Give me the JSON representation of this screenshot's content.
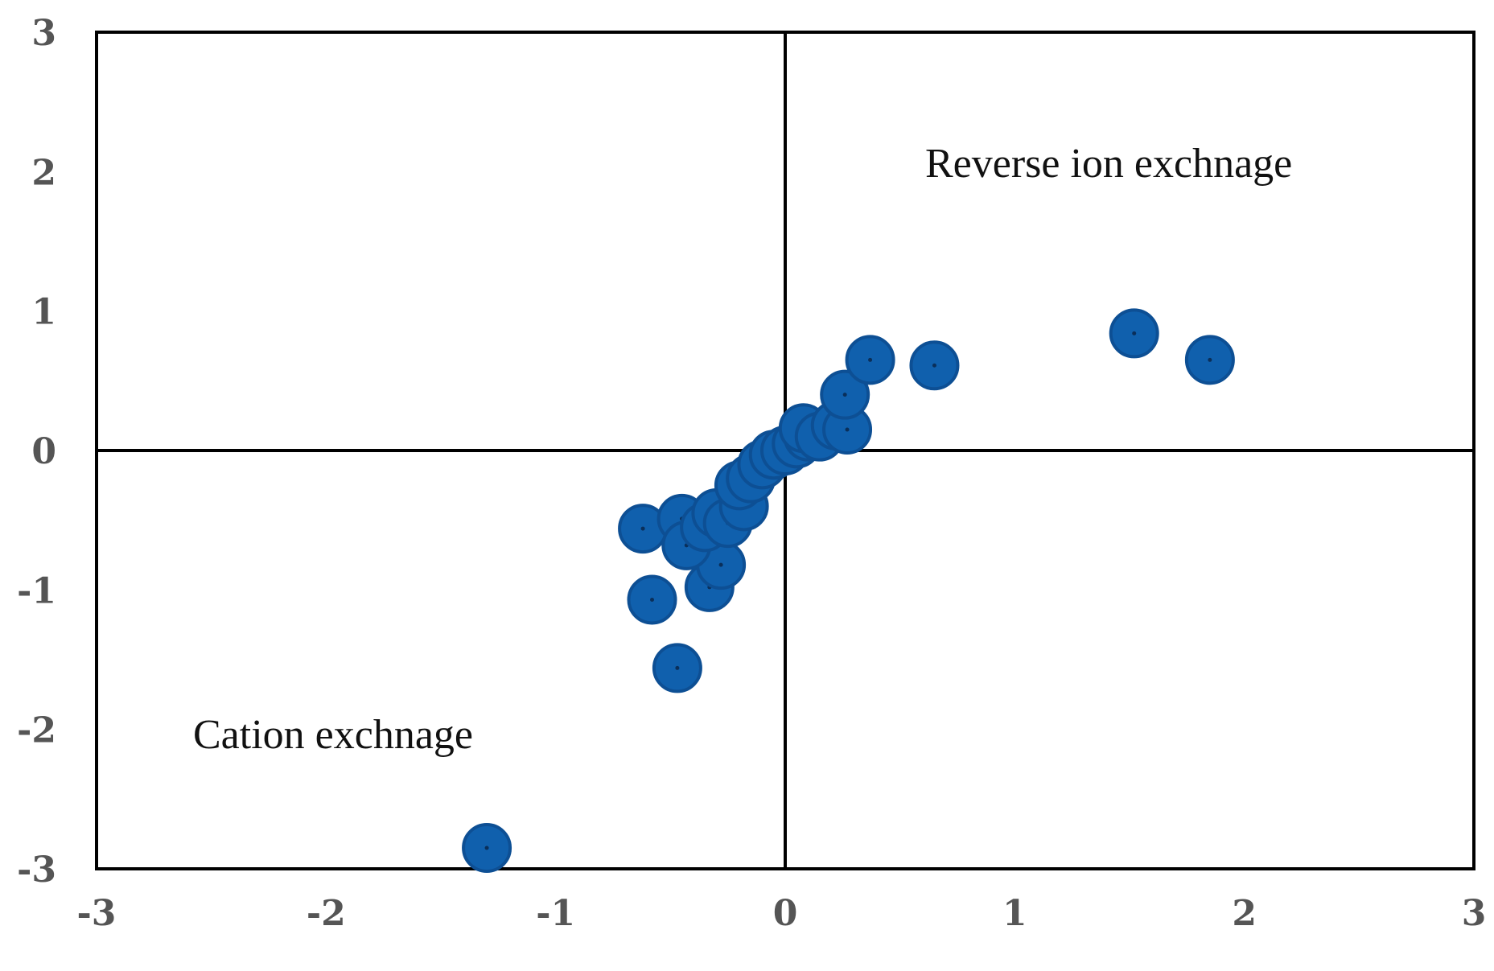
{
  "colors": {
    "point_fill": "#1060ad",
    "point_stroke": "#0d4f94",
    "axis_line": "#000000",
    "tick_text": "#555555"
  },
  "chart_data": {
    "type": "scatter",
    "title": "",
    "xlabel": "",
    "ylabel": "",
    "xlim": [
      -3,
      3
    ],
    "ylim": [
      -3,
      3
    ],
    "xticks": [
      "-3",
      "-2",
      "-1",
      "0",
      "1",
      "2",
      "3"
    ],
    "yticks": [
      "3",
      "2",
      "1",
      "0",
      "-1",
      "-2",
      "-3"
    ],
    "grid": false,
    "annotations": [
      {
        "text": "Reverse ion exchnage",
        "quadrant": "top-right"
      },
      {
        "text": "Cation exchnage",
        "quadrant": "bottom-left"
      }
    ],
    "series": [
      {
        "points": [
          {
            "x": -1.3,
            "y": -2.85
          },
          {
            "x": -0.47,
            "y": -1.56
          },
          {
            "x": -0.58,
            "y": -1.07
          },
          {
            "x": -0.33,
            "y": -0.98
          },
          {
            "x": -0.28,
            "y": -0.82
          },
          {
            "x": -0.62,
            "y": -0.56
          },
          {
            "x": -0.45,
            "y": -0.49
          },
          {
            "x": -0.43,
            "y": -0.68
          },
          {
            "x": -0.35,
            "y": -0.55
          },
          {
            "x": -0.3,
            "y": -0.45
          },
          {
            "x": -0.25,
            "y": -0.52
          },
          {
            "x": -0.18,
            "y": -0.4
          },
          {
            "x": -0.2,
            "y": -0.25
          },
          {
            "x": -0.15,
            "y": -0.2
          },
          {
            "x": -0.1,
            "y": -0.1
          },
          {
            "x": -0.05,
            "y": -0.03
          },
          {
            "x": 0.0,
            "y": 0.0
          },
          {
            "x": 0.05,
            "y": 0.05
          },
          {
            "x": 0.1,
            "y": 0.1
          },
          {
            "x": 0.08,
            "y": 0.16
          },
          {
            "x": 0.15,
            "y": 0.1
          },
          {
            "x": 0.22,
            "y": 0.18
          },
          {
            "x": 0.27,
            "y": 0.15
          },
          {
            "x": 0.26,
            "y": 0.4
          },
          {
            "x": 0.37,
            "y": 0.65
          },
          {
            "x": 0.65,
            "y": 0.61
          },
          {
            "x": 1.52,
            "y": 0.84
          },
          {
            "x": 1.85,
            "y": 0.65
          }
        ]
      }
    ]
  }
}
